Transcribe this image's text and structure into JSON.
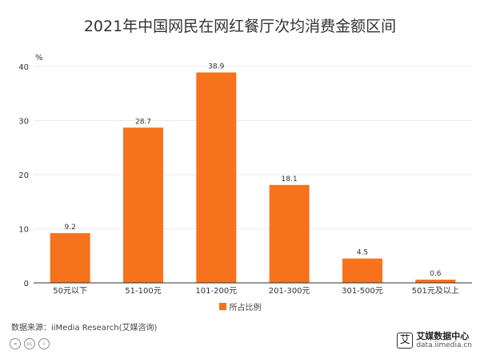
{
  "title": "2021年中国网民在网红餐厅次均消费金额区间",
  "unit": "%",
  "colors": {
    "bar": "#F7721C",
    "axis": "#333333",
    "grid": "#ebebeb"
  },
  "chart_data": {
    "type": "bar",
    "categories": [
      "50元以下",
      "51-100元",
      "101-200元",
      "201-300元",
      "301-500元",
      "501元及以上"
    ],
    "series": [
      {
        "name": "所占比例",
        "values": [
          9.2,
          28.7,
          38.9,
          18.1,
          4.5,
          0.6
        ]
      }
    ],
    "ylabel": "%",
    "ylim": [
      0,
      40
    ],
    "yticks": [
      0,
      10,
      20,
      30,
      40
    ],
    "grid": true,
    "legend": "bottom"
  },
  "legend_label": "所占比例",
  "source": "数据来源：iiMedia Research(艾媒咨询)",
  "license_icons": [
    "equals-icon",
    "cc-icon",
    "person-icon"
  ],
  "license_text": [
    "=",
    "cc",
    "i"
  ],
  "brand": {
    "mark": "艾",
    "name": "艾媒数据中心",
    "url": "data.iimedia.cn"
  }
}
